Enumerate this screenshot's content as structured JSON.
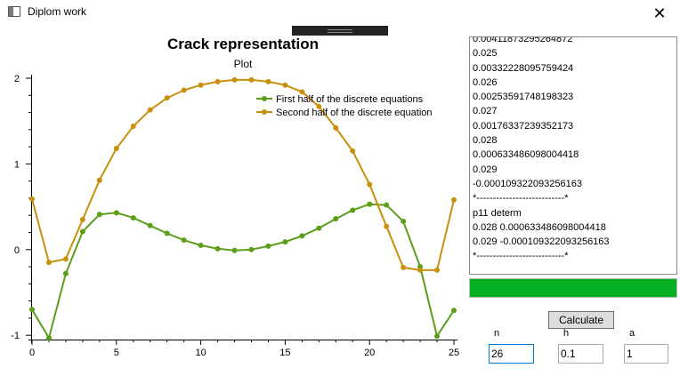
{
  "window": {
    "title": "Diplom work",
    "close_glyph": "✕"
  },
  "chart_data": {
    "type": "line",
    "title": "Crack representation",
    "subtitle": "Plot",
    "xlim": [
      0,
      25
    ],
    "ylim": [
      -1.05,
      2.0
    ],
    "x_ticks": [
      "0",
      "5",
      "10",
      "15",
      "20",
      "25"
    ],
    "y_ticks": [
      "-1",
      "0",
      "1",
      "2"
    ],
    "legend_position": "top-right",
    "x": [
      0,
      1,
      2,
      3,
      4,
      5,
      6,
      7,
      8,
      9,
      10,
      11,
      12,
      13,
      14,
      15,
      16,
      17,
      18,
      19,
      20,
      21,
      22,
      23,
      24,
      25
    ],
    "series": [
      {
        "name": "First half of the discrete equations",
        "color": "#5a9e1a",
        "values": [
          -0.7,
          -1.03,
          -0.28,
          0.21,
          0.41,
          0.43,
          0.37,
          0.28,
          0.19,
          0.11,
          0.05,
          0.01,
          -0.01,
          0.0,
          0.04,
          0.09,
          0.16,
          0.25,
          0.36,
          0.46,
          0.53,
          0.52,
          0.33,
          -0.2,
          -1.01,
          -0.71
        ]
      },
      {
        "name": "Second half of the discrete equation",
        "color": "#c8900c",
        "values": [
          0.59,
          -0.15,
          -0.11,
          0.35,
          0.81,
          1.18,
          1.44,
          1.63,
          1.77,
          1.86,
          1.92,
          1.96,
          1.98,
          1.98,
          1.96,
          1.92,
          1.84,
          1.67,
          1.42,
          1.15,
          0.76,
          0.27,
          -0.21,
          -0.24,
          -0.24,
          0.58
        ]
      }
    ]
  },
  "log": {
    "lines": [
      "0.00411873295264872",
      "0.025",
      "0.00332228095759424",
      "0.026",
      "0.00253591748198323",
      "0.027",
      "0.00176337239352173",
      "0.028",
      "0.000633486098004418",
      "0.029",
      "-0.000109322093256163",
      "*---------------------------*",
      "p11 determ",
      "0.028 0.000633486098004418",
      "0.029 -0.000109322093256163",
      "*---------------------------*"
    ]
  },
  "progress": {
    "fraction": 1.0,
    "color": "#06b025"
  },
  "controls": {
    "calculate_label": "Calculate",
    "n": {
      "label": "n",
      "value": "26"
    },
    "h": {
      "label": "h",
      "value": "0.1"
    },
    "a": {
      "label": "a",
      "value": "1"
    }
  }
}
